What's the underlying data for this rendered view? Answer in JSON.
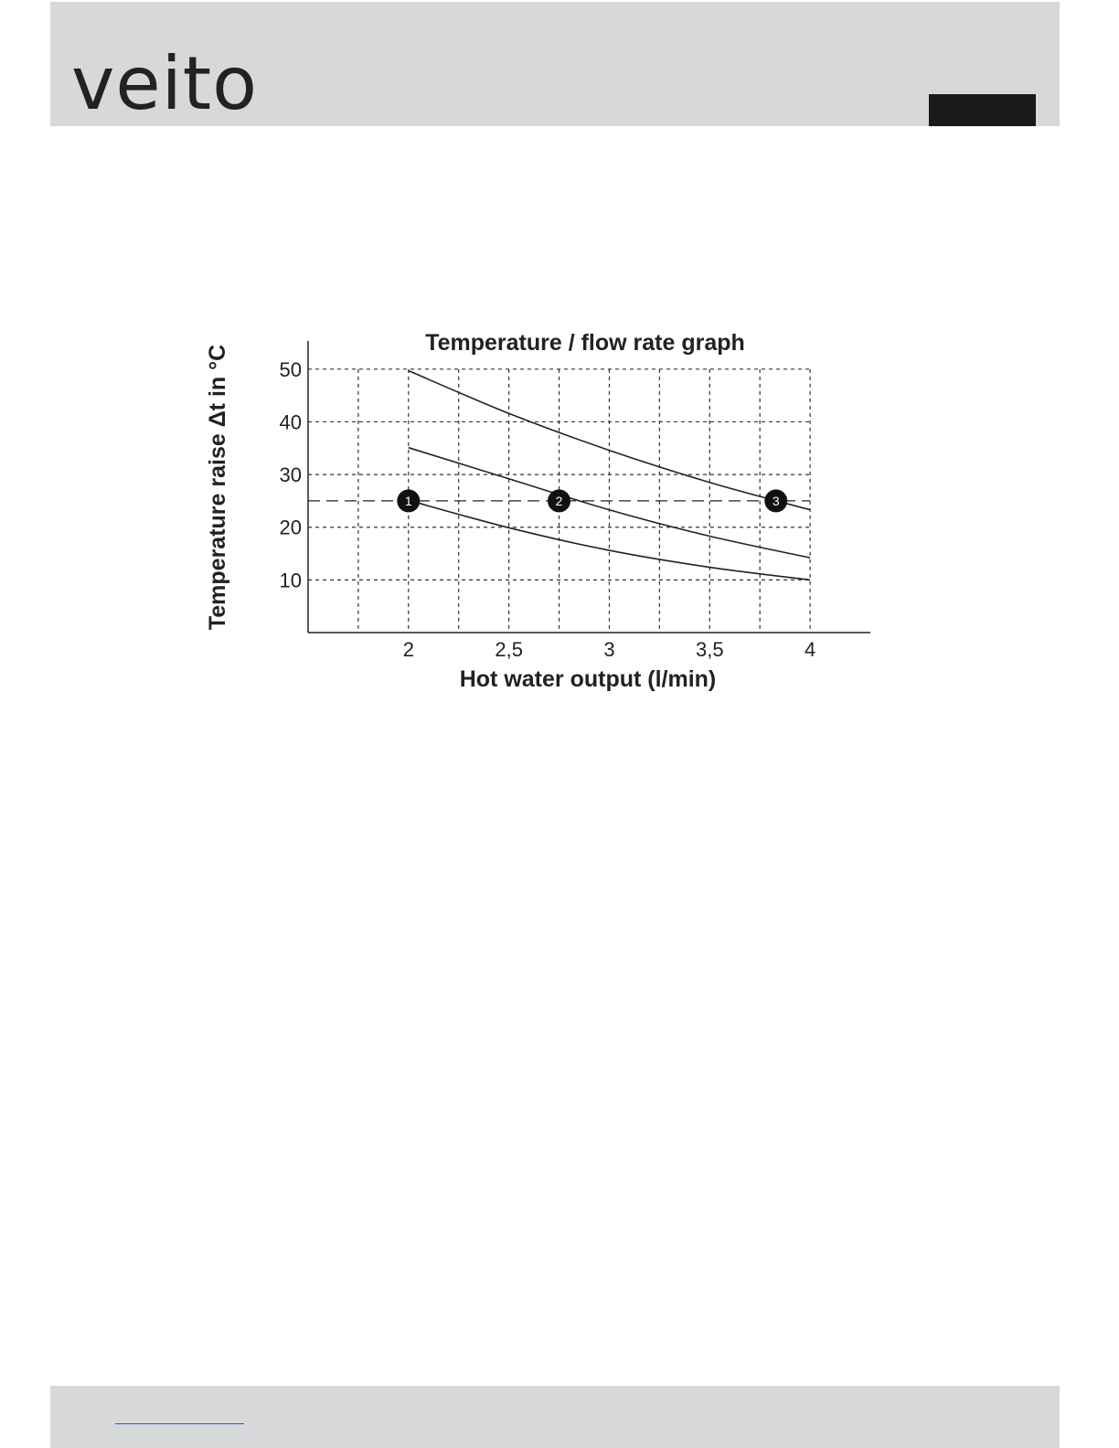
{
  "brand": {
    "logo_text": "veito"
  },
  "chart_data": {
    "type": "line",
    "title": "Temperature / flow rate graph",
    "xlabel": "Hot water output (l/min)",
    "ylabel": "Temperature raise  Δt  in °C",
    "xlim": [
      1.5,
      4.3
    ],
    "ylim": [
      0,
      55
    ],
    "x_ticks": [
      2,
      2.5,
      3,
      3.5,
      4
    ],
    "x_tick_labels": [
      "2",
      "2,5",
      "3",
      "3,5",
      "4"
    ],
    "y_ticks": [
      10,
      20,
      30,
      40,
      50
    ],
    "y_tick_labels": [
      "10",
      "20",
      "30",
      "40",
      "50"
    ],
    "grid": true,
    "series": [
      {
        "x": [
          2,
          2.5,
          3,
          3.5,
          4
        ],
        "values": [
          49.7,
          41.6,
          34.6,
          28.5,
          23.3
        ]
      },
      {
        "x": [
          2,
          2.5,
          3,
          3.5,
          4
        ],
        "values": [
          35.1,
          29.2,
          23.3,
          18.3,
          14.2
        ]
      },
      {
        "x": [
          2,
          2.5,
          3,
          3.5,
          4
        ],
        "values": [
          25.1,
          19.9,
          15.6,
          12.4,
          10.0
        ]
      }
    ],
    "reference_line": {
      "y": 25
    },
    "markers": [
      {
        "label": "1",
        "x": 2.0,
        "y": 25
      },
      {
        "label": "2",
        "x": 2.75,
        "y": 25
      },
      {
        "label": "3",
        "x": 3.83,
        "y": 25
      }
    ]
  }
}
